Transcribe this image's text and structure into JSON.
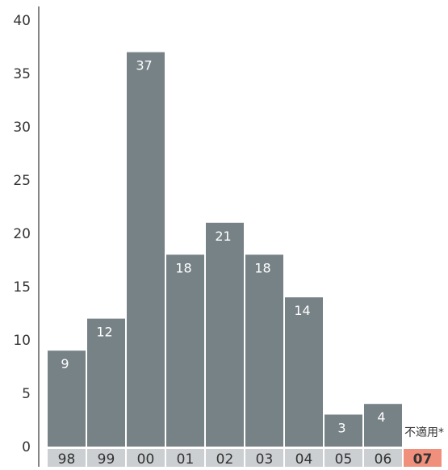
{
  "chart_data": {
    "type": "bar",
    "categories": [
      "98",
      "99",
      "00",
      "01",
      "02",
      "03",
      "04",
      "05",
      "06",
      "07"
    ],
    "values": [
      9,
      12,
      37,
      18,
      21,
      18,
      14,
      3,
      4,
      null
    ],
    "data_labels": [
      "9",
      "12",
      "37",
      "18",
      "21",
      "18",
      "14",
      "3",
      "4",
      ""
    ],
    "annotations": [
      {
        "category": "07",
        "text": "不適用*"
      }
    ],
    "ylim": [
      0,
      40
    ],
    "yticks": [
      0,
      5,
      10,
      15,
      20,
      25,
      30,
      35,
      40
    ],
    "grid": false,
    "title": "",
    "xlabel": "",
    "ylabel": ""
  },
  "colors": {
    "bar": "#778287",
    "tick_band": "#cbcfd1",
    "highlight_tick_band": "#f0907c",
    "axis": "#333333",
    "label_on_bar": "#ffffff",
    "text": "#333333"
  },
  "highlight_category": "07"
}
